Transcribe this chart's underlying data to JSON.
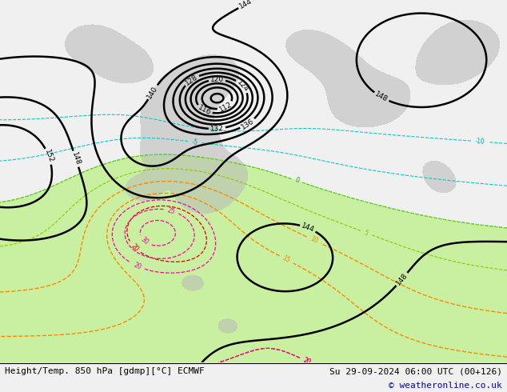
{
  "footer_left": "Height/Temp. 850 hPa [gdmp][°C] ECMWF",
  "footer_right": "Su 29-09-2024 06:00 UTC (00+126)",
  "footer_copyright": "© weatheronline.co.uk",
  "background_color": "#f0f0f0",
  "map_bg_color": "#f0f0f0",
  "green_fill_color": "#c8f0a0",
  "gray_land_color": "#b8b8b8",
  "footer_bg_color": "#ffffff",
  "footer_text_color": "#000000",
  "copyright_color": "#0000cc",
  "fig_width": 6.34,
  "fig_height": 4.9,
  "dpi": 100,
  "footer_fontsize": 8.0,
  "copyright_fontsize": 8.0
}
